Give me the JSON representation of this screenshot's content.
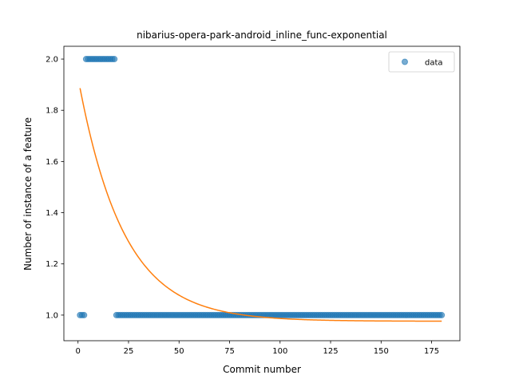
{
  "chart_data": {
    "type": "scatter",
    "title": "nibarius-opera-park-android_inline_func-exponential",
    "xlabel": "Commit number",
    "ylabel": "Number of instance of a feature",
    "xlim": [
      -7,
      189
    ],
    "ylim": [
      0.9,
      2.05
    ],
    "xticks": [
      0,
      25,
      50,
      75,
      100,
      125,
      150,
      175
    ],
    "yticks": [
      1.0,
      1.2,
      1.4,
      1.6,
      1.8,
      2.0
    ],
    "ytick_labels": [
      "1.0",
      "1.2",
      "1.4",
      "1.6",
      "1.8",
      "2.0"
    ],
    "grid": false,
    "legend": {
      "position": "top-right",
      "entries": [
        "data"
      ]
    },
    "series": [
      {
        "name": "data",
        "kind": "scatter",
        "color": "#1f77b4",
        "segments": [
          {
            "x_start": 1,
            "x_end": 3,
            "y": 1.0
          },
          {
            "x_start": 4,
            "x_end": 18,
            "y": 2.0
          },
          {
            "x_start": 19,
            "x_end": 180,
            "y": 1.0
          }
        ]
      },
      {
        "kind": "fit-line",
        "color": "#ff7f0e",
        "model": "exponential",
        "params": {
          "a": 0.952,
          "b": 0.0447,
          "c": 0.976
        },
        "x_range": [
          1,
          180
        ]
      }
    ]
  }
}
